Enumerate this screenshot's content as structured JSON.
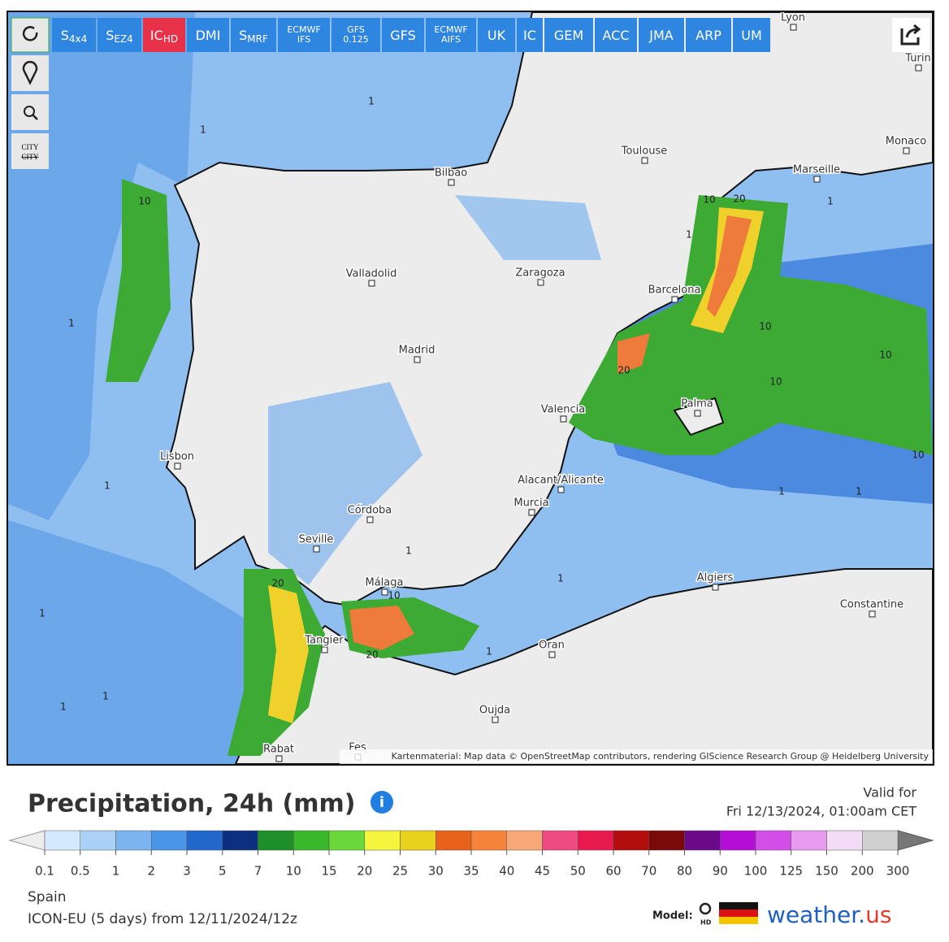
{
  "toolbar": {
    "models": [
      {
        "text": "S",
        "sub": "4x4"
      },
      {
        "text": "S",
        "sub": "EZ4"
      },
      {
        "text": "IC",
        "sub": "HD"
      },
      {
        "text": "DMI"
      },
      {
        "text": "S",
        "sub": "MRF"
      },
      {
        "lines": [
          "ECMWF",
          "IFS"
        ]
      },
      {
        "lines": [
          "GFS",
          "0.125"
        ]
      },
      {
        "text": "GFS"
      },
      {
        "lines": [
          "ECMWF",
          "AIFS"
        ]
      },
      {
        "text": "UK"
      },
      {
        "text": "IC"
      },
      {
        "text": "GEM"
      },
      {
        "text": "ACC"
      },
      {
        "text": "JMA"
      },
      {
        "text": "ARP"
      },
      {
        "text": "UM"
      }
    ],
    "city_button": "CITY",
    "city_button_struck": "CITY"
  },
  "map": {
    "cities": [
      "Lyon",
      "Turin",
      "Monaco",
      "Toulouse",
      "Marseille",
      "Bilbao",
      "Zaragoza",
      "Valladolid",
      "Barcelona",
      "Madrid",
      "Valencia",
      "Palma",
      "Lisbon",
      "Alacant/Alicante",
      "Murcia",
      "Córdoba",
      "Seville",
      "Málaga",
      "Algiers",
      "Constantine",
      "Tangier",
      "Oran",
      "Oujda",
      "Rabat",
      "Fes"
    ],
    "contour_labels": [
      "1",
      "1",
      "10",
      "1",
      "1",
      "1",
      "1",
      "1",
      "20",
      "10",
      "20",
      "20",
      "20",
      "10",
      "10",
      "10",
      "10",
      "10",
      "1",
      "1",
      "1",
      "1",
      "1",
      "1",
      "1"
    ],
    "attribution": "Kartenmaterial: Map data © OpenStreetMap contributors, rendering GIScience Research Group @ Heidelberg University"
  },
  "footer": {
    "title": "Precipitation, 24h (mm)",
    "valid_label": "Valid for",
    "valid_time": "Fri 12/13/2024, 01:00am CET",
    "region": "Spain",
    "run": "ICON-EU (5 days) from 12/11/2024/12z",
    "model_label": "Model:",
    "model_badge": "HD",
    "brand": "weather.",
    "brand_tld": "us"
  },
  "legend": {
    "ticks": [
      0.1,
      0.5,
      1,
      2,
      3,
      5,
      7,
      10,
      15,
      20,
      25,
      30,
      35,
      40,
      45,
      50,
      60,
      70,
      80,
      90,
      100,
      125,
      150,
      200,
      300
    ],
    "colors": [
      "#d4e9fb",
      "#a9d2f6",
      "#7ab5ef",
      "#4b95e8",
      "#2267cc",
      "#0c2f7f",
      "#1f8f2a",
      "#39b82c",
      "#6ad83a",
      "#f4f53c",
      "#e8d21c",
      "#e8621c",
      "#f5833a",
      "#f7a878",
      "#f04a82",
      "#e8194e",
      "#b30d0d",
      "#7a0a0a",
      "#6a0a8a",
      "#b40ed6",
      "#d34ee8",
      "#e79bf0",
      "#f3dcf6",
      "#d0d0d0"
    ]
  }
}
